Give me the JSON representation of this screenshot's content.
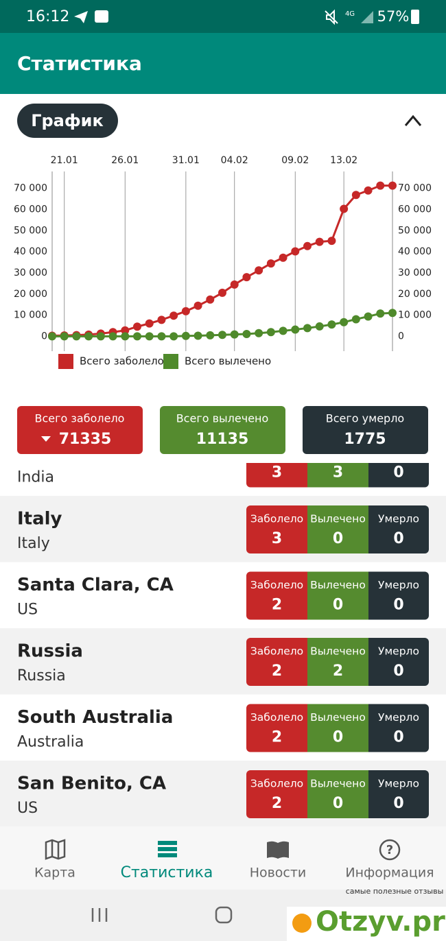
{
  "status_bar": {
    "time": "16:12",
    "network": "4G",
    "battery": "57%"
  },
  "app_bar": {
    "title": "Статистика"
  },
  "chart_section": {
    "chip": "График"
  },
  "chart_data": {
    "type": "line",
    "categories": [
      null,
      "21.01",
      null,
      null,
      null,
      null,
      "26.01",
      null,
      null,
      null,
      null,
      "31.01",
      null,
      null,
      null,
      "04.02",
      null,
      null,
      null,
      null,
      "09.02",
      null,
      null,
      null,
      "13.02",
      null,
      null,
      null,
      null
    ],
    "series": [
      {
        "name": "Всего заболело",
        "color": "#c62828",
        "values": [
          300,
          440,
          570,
          830,
          1300,
          2000,
          2800,
          4600,
          6100,
          7800,
          9800,
          11900,
          14500,
          17400,
          20600,
          24500,
          28000,
          31200,
          34500,
          37200,
          40200,
          42700,
          44700,
          45200,
          60300,
          66900,
          69000,
          71300,
          71300
        ]
      },
      {
        "name": "Всего вылечено",
        "color": "#4f8a2b",
        "values": [
          0,
          0,
          0,
          0,
          0,
          0,
          0,
          0,
          0,
          0,
          0,
          200,
          300,
          500,
          700,
          900,
          1100,
          1500,
          2000,
          2600,
          3200,
          3900,
          4700,
          5600,
          6700,
          8100,
          9400,
          10800,
          11100
        ]
      }
    ],
    "ylim": [
      -7000,
      78000
    ],
    "yticks": [
      0,
      {
        "value": 10000,
        "label": "10 000"
      },
      {
        "value": 20000,
        "label": "20 000"
      },
      {
        "value": 30000,
        "label": "30 000"
      },
      {
        "value": 40000,
        "label": "40 000"
      },
      {
        "value": 50000,
        "label": "50 000"
      },
      {
        "value": 60000,
        "label": "60 000"
      },
      {
        "value": 70000,
        "label": "70 000"
      }
    ],
    "grid": "x",
    "legend_position": "bottom-left"
  },
  "summary": [
    {
      "label": "Всего заболело",
      "value": "71335",
      "color": "#c62828"
    },
    {
      "label": "Всего вылечено",
      "value": "11135",
      "color": "#558b2f"
    },
    {
      "label": "Всего умерло",
      "value": "1775",
      "color": "#263238"
    }
  ],
  "list": {
    "columns": [
      "Заболело",
      "Вылечено",
      "Умерло"
    ],
    "partial_row": {
      "region": "India",
      "values": [
        "3",
        "3",
        "0"
      ]
    },
    "rows": [
      {
        "name": "Italy",
        "region": "Italy",
        "values": [
          "3",
          "0",
          "0"
        ]
      },
      {
        "name": "Santa Clara, CA",
        "region": "US",
        "values": [
          "2",
          "0",
          "0"
        ]
      },
      {
        "name": "Russia",
        "region": "Russia",
        "values": [
          "2",
          "2",
          "0"
        ]
      },
      {
        "name": "South Australia",
        "region": "Australia",
        "values": [
          "2",
          "0",
          "0"
        ]
      },
      {
        "name": "San Benito, CA",
        "region": "US",
        "values": [
          "2",
          "0",
          "0"
        ]
      }
    ]
  },
  "nav": {
    "items": [
      "Карта",
      "Статистика",
      "Новости",
      "Информация"
    ],
    "active": 1
  },
  "watermark": {
    "tagline": "самые полезные отзывы",
    "brand": "Otzyv.pro"
  }
}
